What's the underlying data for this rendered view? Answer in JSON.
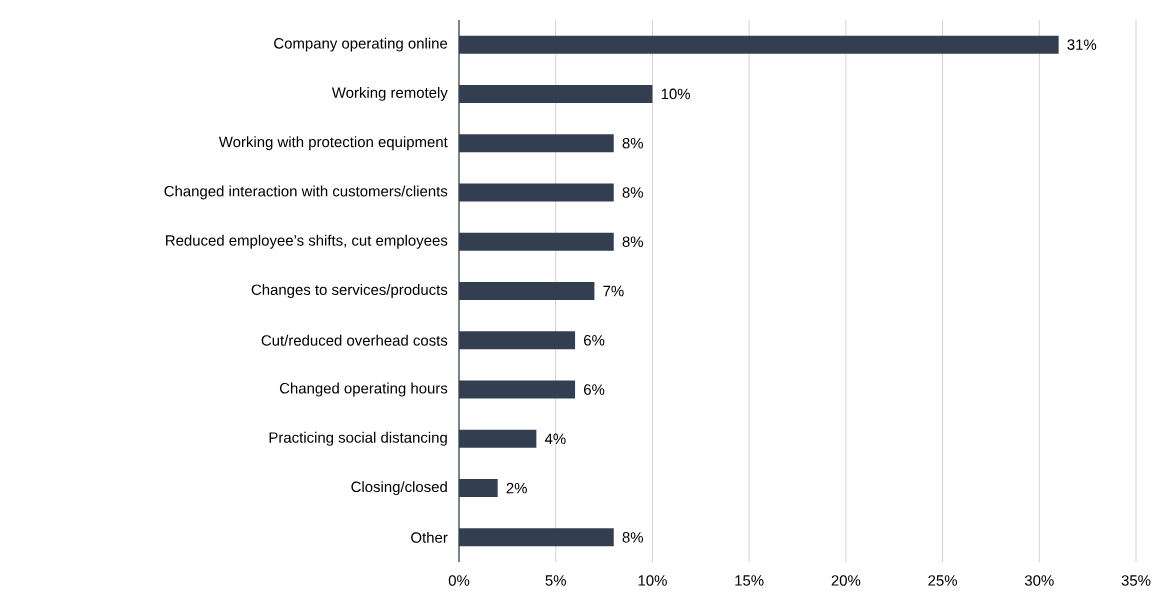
{
  "chart_data": {
    "type": "bar",
    "orientation": "horizontal",
    "categories": [
      "Company operating online",
      "Working remotely",
      "Working with protection equipment",
      "Changed interaction with customers/clients",
      "Reduced employee’s shifts, cut employees",
      "Changes to services/products",
      "Cut/reduced overhead costs",
      "Changed operating hours",
      "Practicing social distancing",
      "Closing/closed",
      "Other"
    ],
    "values": [
      31,
      10,
      8,
      8,
      8,
      7,
      6,
      6,
      4,
      2,
      8
    ],
    "value_labels": [
      "31%",
      "10%",
      "8%",
      "8%",
      "8%",
      "7%",
      "6%",
      "6%",
      "4%",
      "2%",
      "8%"
    ],
    "color": "#333f50",
    "xlim": [
      0,
      35
    ],
    "xticks": [
      {
        "value": 0,
        "label": "0%"
      },
      {
        "value": 5,
        "label": "5%"
      },
      {
        "value": 10,
        "label": "10%"
      },
      {
        "value": 15,
        "label": "15%"
      },
      {
        "value": 20,
        "label": "20%"
      },
      {
        "value": 25,
        "label": "25%"
      },
      {
        "value": 30,
        "label": "30%"
      },
      {
        "value": 35,
        "label": "35%"
      }
    ],
    "grid": "x"
  }
}
